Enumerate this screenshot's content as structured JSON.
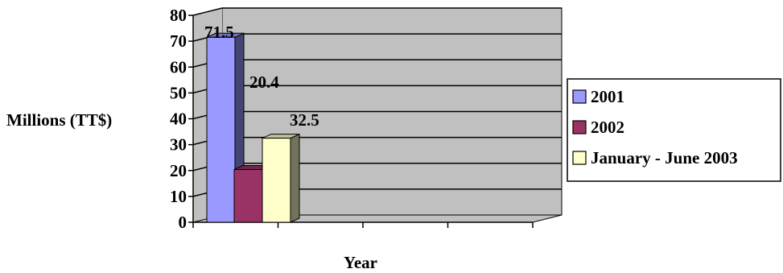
{
  "chart_data": {
    "type": "bar",
    "three_d": true,
    "title": "",
    "xlabel": "Year",
    "ylabel": "Millions (TT$)",
    "ylim": [
      0,
      80
    ],
    "yticks": [
      0,
      10,
      20,
      30,
      40,
      50,
      60,
      70,
      80
    ],
    "grid": true,
    "legend_position": "right",
    "series": [
      {
        "name": "2001",
        "value": 71.5,
        "label": "71.5",
        "color": "#9999ff"
      },
      {
        "name": "2002",
        "value": 20.4,
        "label": "20.4",
        "color": "#993366"
      },
      {
        "name": "January - June 2003",
        "value": 32.5,
        "label": "32.5",
        "color": "#ffffcc"
      }
    ]
  }
}
